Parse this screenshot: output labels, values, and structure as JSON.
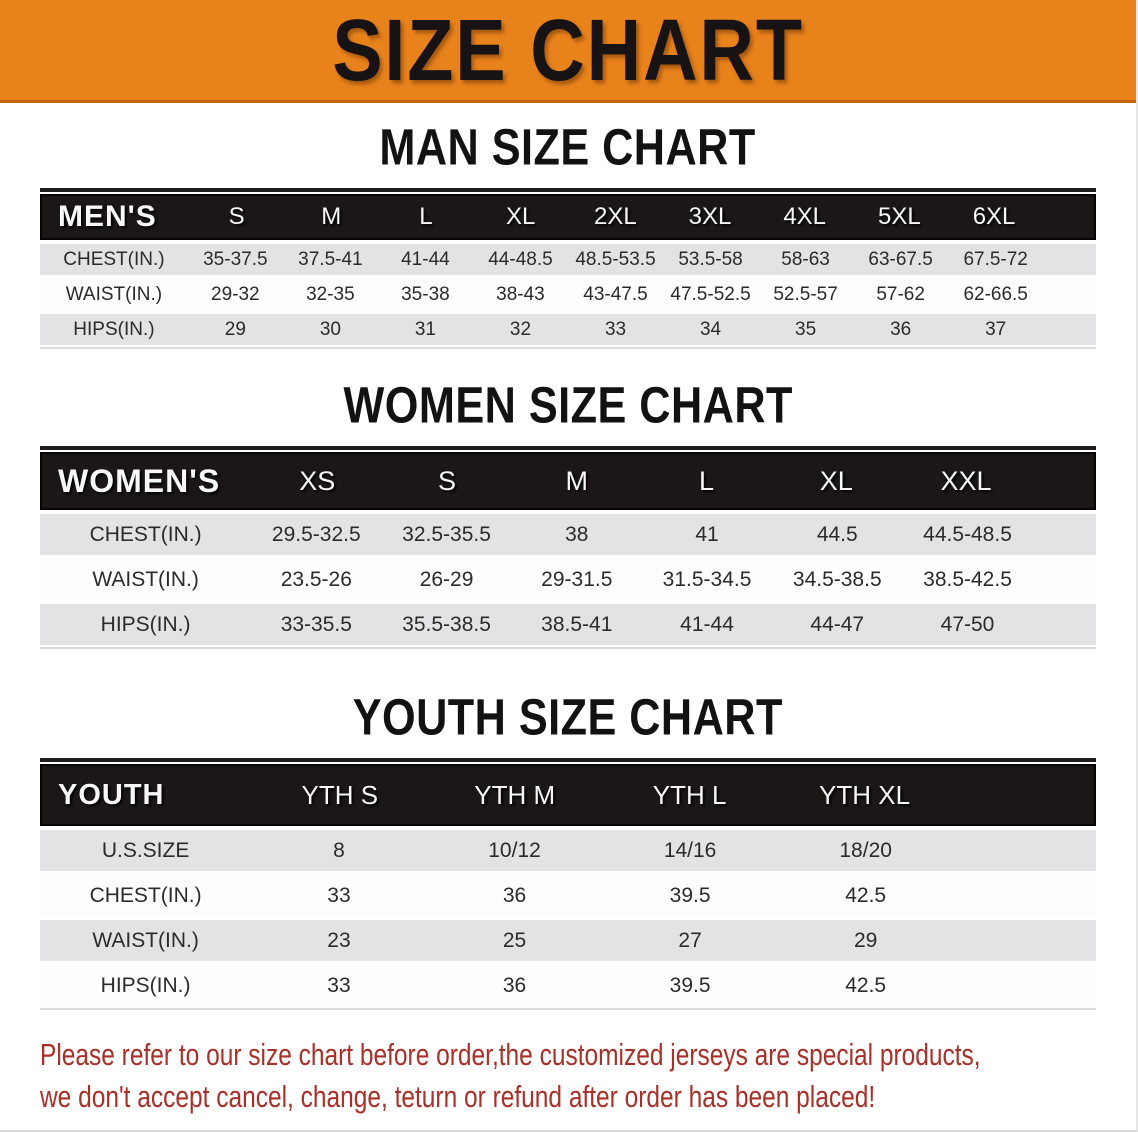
{
  "banner": {
    "title": "SIZE CHART",
    "background_color": "#E8821B",
    "text_color": "#171214"
  },
  "sections": [
    {
      "id": "men",
      "heading": "MAN SIZE CHART",
      "table": {
        "label": "MEN'S",
        "columns": [
          "S",
          "M",
          "L",
          "XL",
          "2XL",
          "3XL",
          "4XL",
          "5XL",
          "6XL"
        ],
        "rows": [
          {
            "label": "CHEST(IN.)",
            "values": [
              "35-37.5",
              "37.5-41",
              "41-44",
              "44-48.5",
              "48.5-53.5",
              "53.5-58",
              "58-63",
              "63-67.5",
              "67.5-72"
            ]
          },
          {
            "label": "WAIST(IN.)",
            "values": [
              "29-32",
              "32-35",
              "35-38",
              "38-43",
              "43-47.5",
              "47.5-52.5",
              "52.5-57",
              "57-62",
              "62-66.5"
            ]
          },
          {
            "label": "HIPS(IN.)",
            "values": [
              "29",
              "30",
              "31",
              "32",
              "33",
              "34",
              "35",
              "36",
              "37"
            ]
          }
        ]
      }
    },
    {
      "id": "women",
      "heading": "WOMEN SIZE CHART",
      "table": {
        "label": "WOMEN'S",
        "columns": [
          "XS",
          "S",
          "M",
          "L",
          "XL",
          "XXL"
        ],
        "rows": [
          {
            "label": "CHEST(IN.)",
            "values": [
              "29.5-32.5",
              "32.5-35.5",
              "38",
              "41",
              "44.5",
              "44.5-48.5"
            ]
          },
          {
            "label": "WAIST(IN.)",
            "values": [
              "23.5-26",
              "26-29",
              "29-31.5",
              "31.5-34.5",
              "34.5-38.5",
              "38.5-42.5"
            ]
          },
          {
            "label": "HIPS(IN.)",
            "values": [
              "33-35.5",
              "35.5-38.5",
              "38.5-41",
              "41-44",
              "44-47",
              "47-50"
            ]
          }
        ]
      }
    },
    {
      "id": "youth",
      "heading": "YOUTH SIZE CHART",
      "table": {
        "label": "YOUTH",
        "columns": [
          "YTH S",
          "YTH M",
          "YTH L",
          "YTH XL"
        ],
        "rows": [
          {
            "label": "U.S.SIZE",
            "values": [
              "8",
              "10/12",
              "14/16",
              "18/20"
            ]
          },
          {
            "label": "CHEST(IN.)",
            "values": [
              "33",
              "36",
              "39.5",
              "42.5"
            ]
          },
          {
            "label": "WAIST(IN.)",
            "values": [
              "23",
              "25",
              "27",
              "29"
            ]
          },
          {
            "label": "HIPS(IN.)",
            "values": [
              "33",
              "36",
              "39.5",
              "42.5"
            ]
          }
        ]
      }
    }
  ],
  "disclaimer": {
    "lines": [
      "Please refer to our size chart before order,the customized jerseys are special products,",
      "we don't accept cancel, change, teturn or refund after order has been placed!"
    ],
    "text_color": "#A93028"
  },
  "colors": {
    "accent_orange": "#E8821B",
    "banner_border": "#C1660E",
    "table_header_black": "#1C1717",
    "stripe_gray": "#E3E3E5",
    "stripe_white": "#FDFDFE",
    "disclaimer_red": "#A93028"
  }
}
